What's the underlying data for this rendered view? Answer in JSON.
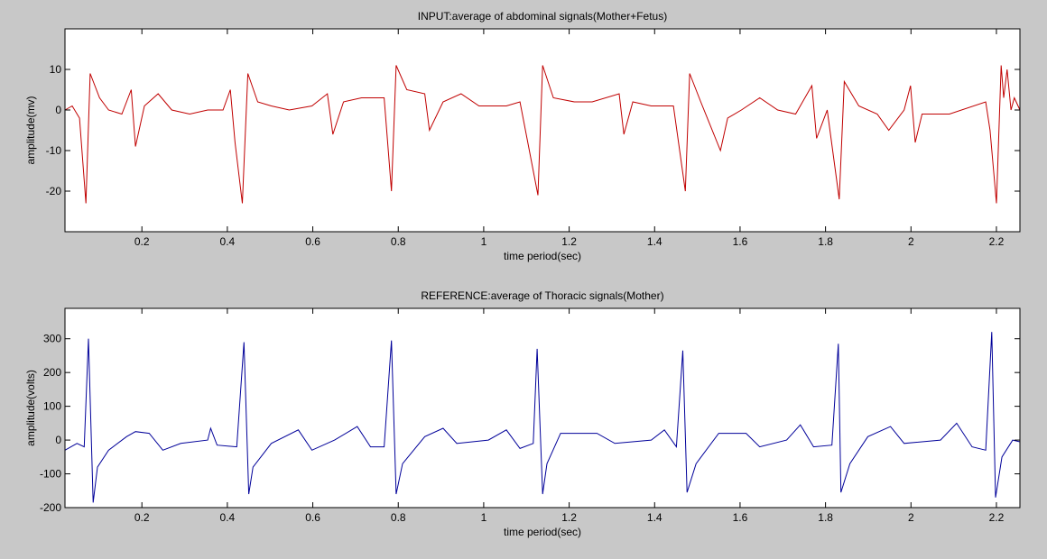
{
  "chart_data": [
    {
      "type": "line",
      "title": "INPUT:average of abdominal signals(Mother+Fetus)",
      "xlabel": "time period(sec)",
      "ylabel": "amplitude(mv)",
      "xlim": [
        0.02,
        2.255
      ],
      "ylim": [
        -30,
        20
      ],
      "xticks": [
        0.2,
        0.4,
        0.6,
        0.8,
        1,
        1.2,
        1.4,
        1.6,
        1.8,
        2,
        2.2
      ],
      "yticks": [
        -20,
        -10,
        0,
        10
      ],
      "color": "#c00000",
      "x": [
        0.02,
        0.037,
        0.054,
        0.069,
        0.079,
        0.101,
        0.122,
        0.153,
        0.175,
        0.185,
        0.206,
        0.238,
        0.27,
        0.312,
        0.354,
        0.39,
        0.407,
        0.418,
        0.435,
        0.448,
        0.471,
        0.503,
        0.545,
        0.598,
        0.634,
        0.647,
        0.672,
        0.714,
        0.767,
        0.784,
        0.795,
        0.82,
        0.862,
        0.873,
        0.905,
        0.947,
        0.989,
        1.053,
        1.085,
        1.127,
        1.138,
        1.163,
        1.212,
        1.254,
        1.317,
        1.328,
        1.349,
        1.392,
        1.444,
        1.472,
        1.482,
        1.508,
        1.554,
        1.571,
        1.603,
        1.646,
        1.688,
        1.73,
        1.768,
        1.779,
        1.804,
        1.832,
        1.844,
        1.878,
        1.921,
        1.948,
        1.984,
        1.999,
        2.01,
        2.026,
        2.09,
        2.175,
        2.185,
        2.2,
        2.211,
        2.217,
        2.225,
        2.234,
        2.242,
        2.255
      ],
      "values": [
        0,
        1,
        -2,
        -23,
        9,
        3,
        0,
        -1,
        5,
        -9,
        1,
        4,
        0,
        -1,
        0,
        0,
        5,
        -8,
        -23,
        9,
        2,
        1,
        0,
        1,
        4,
        -6,
        2,
        3,
        3,
        -20,
        11,
        5,
        4,
        -5,
        2,
        4,
        1,
        1,
        2,
        -21,
        11,
        3,
        2,
        2,
        4,
        -6,
        2,
        1,
        1,
        -20,
        9,
        2,
        -10,
        -2,
        0,
        3,
        0,
        -1,
        6,
        -7,
        0,
        -22,
        7,
        1,
        -1,
        -5,
        0,
        6,
        -8,
        -1,
        -1,
        2,
        -5,
        -23,
        11,
        3,
        10,
        0,
        3,
        0
      ]
    },
    {
      "type": "line",
      "title": "REFERENCE:average of Thoracic signals(Mother)",
      "xlabel": "time period(sec)",
      "ylabel": "amplitude(volts)",
      "xlim": [
        0.02,
        2.255
      ],
      "ylim": [
        -200,
        390
      ],
      "xticks": [
        0.2,
        0.4,
        0.6,
        0.8,
        1,
        1.2,
        1.4,
        1.6,
        1.8,
        2,
        2.2
      ],
      "yticks": [
        -200,
        -100,
        0,
        100,
        200,
        300
      ],
      "color": "#000099",
      "x": [
        0.02,
        0.048,
        0.065,
        0.075,
        0.086,
        0.096,
        0.122,
        0.164,
        0.185,
        0.217,
        0.249,
        0.291,
        0.354,
        0.361,
        0.376,
        0.422,
        0.439,
        0.45,
        0.46,
        0.503,
        0.566,
        0.598,
        0.651,
        0.704,
        0.735,
        0.767,
        0.784,
        0.795,
        0.81,
        0.862,
        0.905,
        0.937,
        1.011,
        1.053,
        1.085,
        1.116,
        1.125,
        1.138,
        1.148,
        1.18,
        1.265,
        1.307,
        1.392,
        1.423,
        1.451,
        1.466,
        1.476,
        1.497,
        1.55,
        1.614,
        1.646,
        1.709,
        1.741,
        1.772,
        1.815,
        1.83,
        1.836,
        1.857,
        1.899,
        1.952,
        1.984,
        2.069,
        2.107,
        2.143,
        2.175,
        2.189,
        2.198,
        2.213,
        2.238,
        2.255
      ],
      "values": [
        -30,
        -10,
        -20,
        300,
        -185,
        -80,
        -30,
        10,
        25,
        20,
        -30,
        -10,
        0,
        35,
        -15,
        -20,
        290,
        -160,
        -80,
        -10,
        30,
        -30,
        0,
        40,
        -20,
        -20,
        295,
        -160,
        -70,
        10,
        35,
        -10,
        0,
        30,
        -25,
        -10,
        270,
        -160,
        -70,
        20,
        20,
        -10,
        0,
        30,
        -20,
        265,
        -155,
        -70,
        20,
        20,
        -20,
        0,
        45,
        -20,
        -15,
        285,
        -155,
        -70,
        10,
        40,
        -10,
        0,
        50,
        -20,
        -30,
        320,
        -170,
        -50,
        0,
        -5
      ]
    }
  ]
}
